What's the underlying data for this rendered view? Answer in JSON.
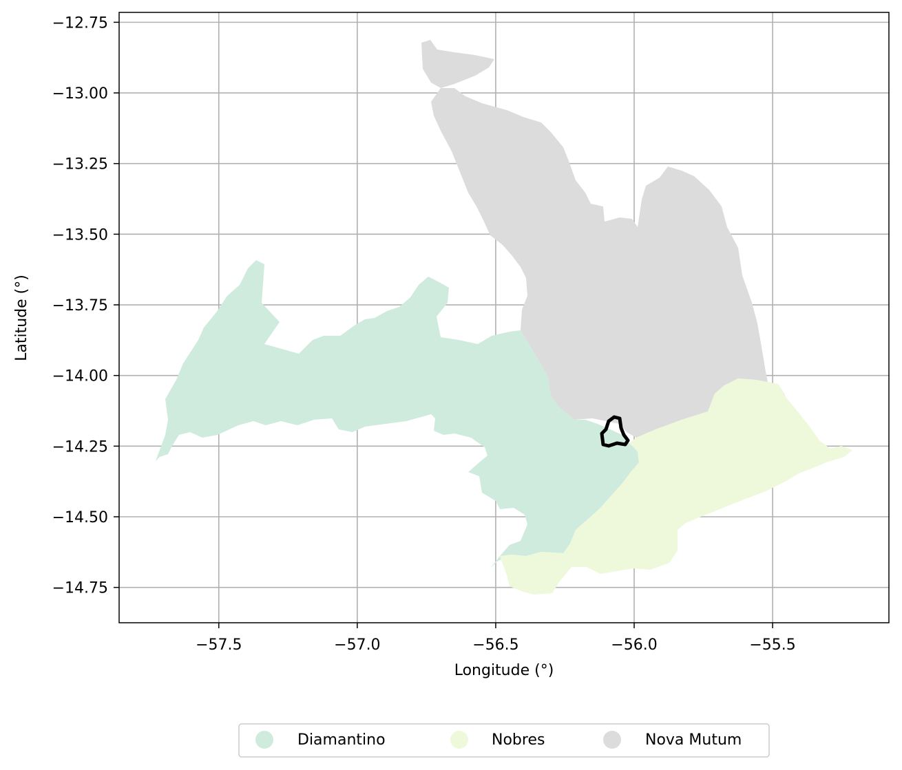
{
  "chart_data": {
    "type": "choropleth-map",
    "xlabel": "Longitude (°)",
    "ylabel": "Latitude (°)",
    "xlim": [
      -57.86,
      -55.08
    ],
    "ylim": [
      -14.875,
      -12.715
    ],
    "xticks": [
      -57.5,
      -57.0,
      -56.5,
      -56.0,
      -55.5
    ],
    "xtick_labels": [
      "−57.5",
      "−57.0",
      "−56.5",
      "−56.0",
      "−55.5"
    ],
    "yticks": [
      -12.75,
      -13.0,
      -13.25,
      -13.5,
      -13.75,
      -14.0,
      -14.25,
      -14.5,
      -14.75
    ],
    "ytick_labels": [
      "−12.75",
      "−13.00",
      "−13.25",
      "−13.50",
      "−13.75",
      "−14.00",
      "−14.25",
      "−14.50",
      "−14.75"
    ],
    "grid": true,
    "legend_position": "bottom-center",
    "regions": [
      {
        "name": "Diamantino",
        "color": "#cfebde"
      },
      {
        "name": "Nobres",
        "color": "#eef8db"
      },
      {
        "name": "Nova Mutum",
        "color": "#dcdcdc"
      }
    ],
    "highlight_outline": {
      "color": "#000000",
      "center_lon": -56.07,
      "center_lat": -14.2
    }
  }
}
